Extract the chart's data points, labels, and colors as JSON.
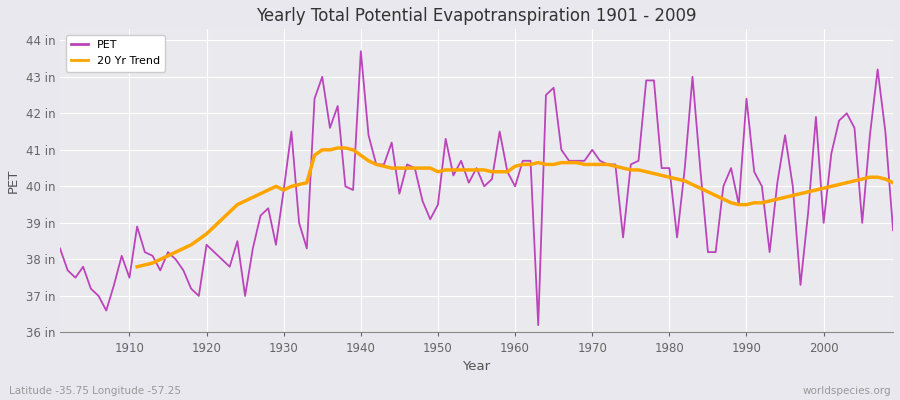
{
  "title": "Yearly Total Potential Evapotranspiration 1901 - 2009",
  "xlabel": "Year",
  "ylabel": "PET",
  "subtitle_left": "Latitude -35.75 Longitude -57.25",
  "subtitle_right": "worldspecies.org",
  "ylim": [
    36,
    44.3
  ],
  "yticks": [
    36,
    37,
    38,
    39,
    40,
    41,
    42,
    43,
    44
  ],
  "ytick_labels": [
    "36 in",
    "37 in",
    "38 in",
    "39 in",
    "40 in",
    "41 in",
    "42 in",
    "43 in",
    "44 in"
  ],
  "pet_color": "#BB44BB",
  "trend_color": "#FFA500",
  "bg_color": "#E8E8EE",
  "plot_bg_color": "#EAEAEE",
  "grid_color": "#FFFFFF",
  "years": [
    1901,
    1902,
    1903,
    1904,
    1905,
    1906,
    1907,
    1908,
    1909,
    1910,
    1911,
    1912,
    1913,
    1914,
    1915,
    1916,
    1917,
    1918,
    1919,
    1920,
    1921,
    1922,
    1923,
    1924,
    1925,
    1926,
    1927,
    1928,
    1929,
    1930,
    1931,
    1932,
    1933,
    1934,
    1935,
    1936,
    1937,
    1938,
    1939,
    1940,
    1941,
    1942,
    1943,
    1944,
    1945,
    1946,
    1947,
    1948,
    1949,
    1950,
    1951,
    1952,
    1953,
    1954,
    1955,
    1956,
    1957,
    1958,
    1959,
    1960,
    1961,
    1962,
    1963,
    1964,
    1965,
    1966,
    1967,
    1968,
    1969,
    1970,
    1971,
    1972,
    1973,
    1974,
    1975,
    1976,
    1977,
    1978,
    1979,
    1980,
    1981,
    1982,
    1983,
    1984,
    1985,
    1986,
    1987,
    1988,
    1989,
    1990,
    1991,
    1992,
    1993,
    1994,
    1995,
    1996,
    1997,
    1998,
    1999,
    2000,
    2001,
    2002,
    2003,
    2004,
    2005,
    2006,
    2007,
    2008,
    2009
  ],
  "pet_values": [
    38.3,
    37.7,
    37.5,
    37.8,
    37.2,
    37.0,
    36.6,
    37.3,
    38.1,
    37.5,
    38.9,
    38.2,
    38.1,
    37.7,
    38.2,
    38.0,
    37.7,
    37.2,
    37.0,
    38.4,
    38.2,
    38.0,
    37.8,
    38.5,
    37.0,
    38.3,
    39.2,
    39.4,
    38.4,
    39.9,
    41.5,
    39.0,
    38.3,
    42.4,
    43.0,
    41.6,
    42.2,
    40.0,
    39.9,
    43.7,
    41.4,
    40.6,
    40.6,
    41.2,
    39.8,
    40.6,
    40.5,
    39.6,
    39.1,
    39.5,
    41.3,
    40.3,
    40.7,
    40.1,
    40.5,
    40.0,
    40.2,
    41.5,
    40.4,
    40.0,
    40.7,
    40.7,
    36.2,
    42.5,
    42.7,
    41.0,
    40.7,
    40.7,
    40.7,
    41.0,
    40.7,
    40.6,
    40.6,
    38.6,
    40.6,
    40.7,
    42.9,
    42.9,
    40.5,
    40.5,
    38.6,
    40.5,
    43.0,
    40.5,
    38.2,
    38.2,
    40.0,
    40.5,
    39.5,
    42.4,
    40.4,
    40.0,
    38.2,
    40.1,
    41.4,
    40.0,
    37.3,
    39.3,
    41.9,
    39.0,
    40.9,
    41.8,
    42.0,
    41.6,
    39.0,
    41.4,
    43.2,
    41.5,
    38.8
  ],
  "trend_years": [
    1911,
    1912,
    1913,
    1914,
    1915,
    1916,
    1917,
    1918,
    1919,
    1920,
    1921,
    1922,
    1923,
    1924,
    1925,
    1926,
    1927,
    1928,
    1929,
    1930,
    1931,
    1932,
    1933,
    1934,
    1935,
    1936,
    1937,
    1938,
    1939,
    1940,
    1941,
    1942,
    1943,
    1944,
    1945,
    1946,
    1947,
    1948,
    1949,
    1950,
    1951,
    1952,
    1953,
    1954,
    1955,
    1956,
    1957,
    1958,
    1959,
    1960,
    1961,
    1962,
    1963,
    1964,
    1965,
    1966,
    1967,
    1968,
    1969,
    1970,
    1971,
    1972,
    1973,
    1974,
    1975,
    1976,
    1977,
    1978,
    1979,
    1980,
    1981,
    1982,
    1983,
    1984,
    1985,
    1986,
    1987,
    1988,
    1989,
    1990,
    1991,
    1992,
    1993,
    1994,
    1995,
    1996,
    1997,
    1998,
    1999,
    2000,
    2001,
    2002,
    2003,
    2004,
    2005,
    2006,
    2007,
    2008,
    2009
  ],
  "trend_values": [
    37.8,
    37.85,
    37.9,
    38.0,
    38.1,
    38.2,
    38.3,
    38.4,
    38.55,
    38.7,
    38.9,
    39.1,
    39.3,
    39.5,
    39.6,
    39.7,
    39.8,
    39.9,
    40.0,
    39.9,
    40.0,
    40.05,
    40.1,
    40.85,
    41.0,
    41.0,
    41.05,
    41.05,
    41.0,
    40.85,
    40.7,
    40.6,
    40.55,
    40.5,
    40.5,
    40.5,
    40.5,
    40.5,
    40.5,
    40.4,
    40.45,
    40.45,
    40.45,
    40.45,
    40.45,
    40.45,
    40.4,
    40.4,
    40.4,
    40.55,
    40.6,
    40.6,
    40.65,
    40.6,
    40.6,
    40.65,
    40.65,
    40.65,
    40.6,
    40.6,
    40.6,
    40.6,
    40.55,
    40.5,
    40.45,
    40.45,
    40.4,
    40.35,
    40.3,
    40.25,
    40.2,
    40.15,
    40.05,
    39.95,
    39.85,
    39.75,
    39.65,
    39.55,
    39.5,
    39.5,
    39.55,
    39.55,
    39.6,
    39.65,
    39.7,
    39.75,
    39.8,
    39.85,
    39.9,
    39.95,
    40.0,
    40.05,
    40.1,
    40.15,
    40.2,
    40.25,
    40.25,
    40.2,
    40.1
  ]
}
